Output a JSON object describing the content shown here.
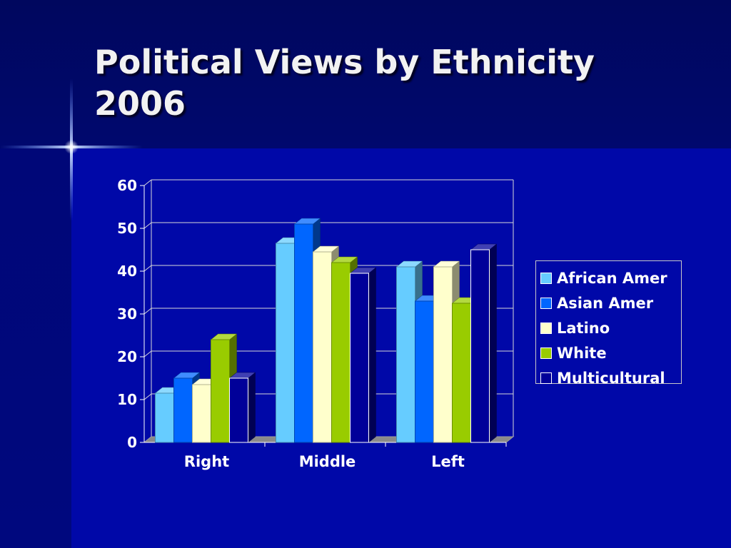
{
  "slide": {
    "title_line1": "Political Views by Ethnicity",
    "title_line2": "2006"
  },
  "chart_data": {
    "type": "bar",
    "style": "3d-clustered",
    "title": "",
    "xlabel": "",
    "ylabel": "",
    "categories": [
      "Right",
      "Middle",
      "Left"
    ],
    "ylim": [
      0,
      60
    ],
    "yticks": [
      0,
      10,
      20,
      30,
      40,
      50,
      60
    ],
    "grid": true,
    "legend_position": "right",
    "series": [
      {
        "name": "African Amer",
        "color": "#66ccff",
        "values": [
          11.5,
          46.5,
          41
        ]
      },
      {
        "name": "Asian Amer",
        "color": "#0066ff",
        "values": [
          15,
          51,
          33
        ]
      },
      {
        "name": "Latino",
        "color": "#ffffcc",
        "values": [
          13.5,
          44.5,
          41
        ]
      },
      {
        "name": "White",
        "color": "#99cc00",
        "values": [
          24,
          42,
          32.5
        ]
      },
      {
        "name": "Multicultural",
        "color": "#000099",
        "values": [
          15,
          39.5,
          45
        ]
      }
    ]
  }
}
